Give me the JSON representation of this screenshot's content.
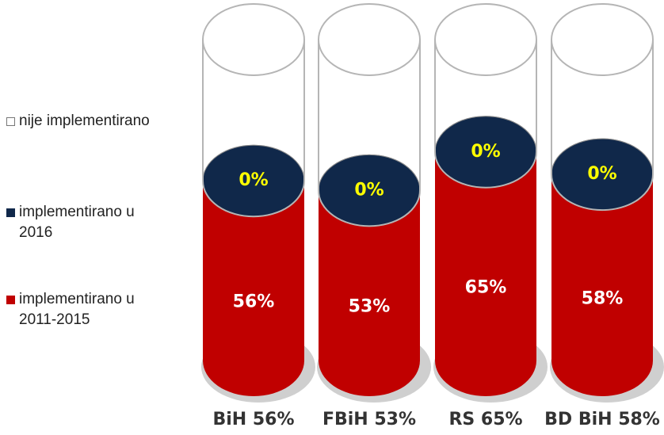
{
  "chart_data": {
    "type": "cylinder",
    "categories": [
      "BiH 56%",
      "FBiH 53%",
      "RS 65%",
      "BD BiH 58%"
    ],
    "series": [
      {
        "name": "implementirano u 2011-2015",
        "color": "#c00000",
        "values": [
          56,
          53,
          65,
          58
        ],
        "value_labels": [
          "56%",
          "53%",
          "65%",
          "58%"
        ]
      },
      {
        "name": "implementirano u 2016",
        "color": "#10284a",
        "values": [
          0,
          0,
          0,
          0
        ],
        "value_labels": [
          "0%",
          "0%",
          "0%",
          "0%"
        ]
      },
      {
        "name": "nije implementirano",
        "color": "#ffffff",
        "values": [
          44,
          47,
          35,
          42
        ]
      }
    ],
    "legend": "left"
  }
}
